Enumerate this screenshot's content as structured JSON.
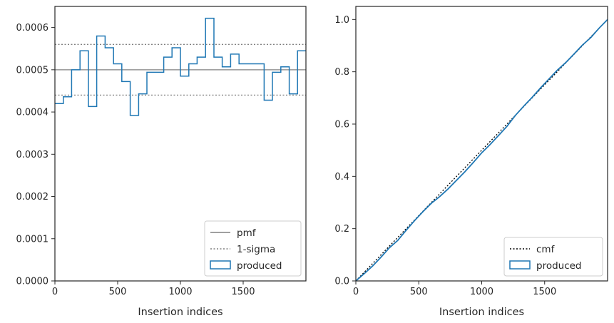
{
  "chart_data": [
    {
      "type": "step",
      "xlabel": "Insertion indices",
      "ylabel": "",
      "xlim": [
        0,
        2000
      ],
      "ylim": [
        0,
        0.00065
      ],
      "xticks": [
        0,
        500,
        1000,
        1500
      ],
      "xtick_labels": [
        "0",
        "500",
        "1000",
        "1500"
      ],
      "yticks": [
        0,
        0.0001,
        0.0002,
        0.0003,
        0.0004,
        0.0005,
        0.0006
      ],
      "ytick_labels": [
        "0.0000",
        "0.0001",
        "0.0002",
        "0.0003",
        "0.0004",
        "0.0005",
        "0.0006"
      ],
      "reference_lines": [
        {
          "name": "pmf",
          "y": 0.0005,
          "style": "solid",
          "color": "#808080"
        },
        {
          "name": "1-sigma",
          "y": 0.00056,
          "style": "dotted",
          "color": "#808080"
        },
        {
          "name": "1-sigma",
          "y": 0.00044,
          "style": "dotted",
          "color": "#808080"
        }
      ],
      "bin_edges": [
        0,
        67,
        133,
        200,
        267,
        333,
        400,
        467,
        533,
        600,
        667,
        733,
        800,
        867,
        933,
        1000,
        1067,
        1133,
        1200,
        1267,
        1333,
        1400,
        1467,
        1533,
        1600,
        1667,
        1733,
        1800,
        1867,
        1933,
        2000
      ],
      "series": [
        {
          "name": "produced",
          "color": "#1f77b4",
          "values": [
            0.00042,
            0.000436,
            0.0005,
            0.000545,
            0.000413,
            0.00058,
            0.000552,
            0.000514,
            0.000472,
            0.000392,
            0.000443,
            0.000494,
            0.000494,
            0.00053,
            0.000552,
            0.000485,
            0.000514,
            0.00053,
            0.000622,
            0.00053,
            0.000507,
            0.000537,
            0.000514,
            0.000514,
            0.000514,
            0.000428,
            0.000494,
            0.000507,
            0.000443,
            0.000545
          ]
        }
      ],
      "legend": {
        "placement": "lower-right",
        "entries": [
          "pmf",
          "1-sigma",
          "produced"
        ]
      }
    },
    {
      "type": "line",
      "xlabel": "Insertion indices",
      "ylabel": "",
      "xlim": [
        0,
        2000
      ],
      "ylim": [
        0,
        1.05
      ],
      "xticks": [
        0,
        500,
        1000,
        1500
      ],
      "xtick_labels": [
        "0",
        "500",
        "1000",
        "1500"
      ],
      "yticks": [
        0,
        0.2,
        0.4,
        0.6,
        0.8,
        1.0
      ],
      "ytick_labels": [
        "0.0",
        "0.2",
        "0.4",
        "0.6",
        "0.8",
        "1.0"
      ],
      "series": [
        {
          "name": "cmf",
          "style": "dotted",
          "color": "#000000",
          "x": [
            0,
            2000
          ],
          "y": [
            0,
            1.0
          ]
        },
        {
          "name": "produced",
          "style": "solid",
          "color": "#1f77b4",
          "x": [
            0,
            67,
            133,
            200,
            267,
            333,
            400,
            467,
            533,
            600,
            667,
            733,
            800,
            867,
            933,
            1000,
            1067,
            1133,
            1200,
            1267,
            1333,
            1400,
            1467,
            1533,
            1600,
            1667,
            1733,
            1800,
            1867,
            1933,
            2000
          ],
          "y": [
            0,
            0.028,
            0.057,
            0.091,
            0.127,
            0.155,
            0.194,
            0.231,
            0.265,
            0.297,
            0.323,
            0.352,
            0.385,
            0.418,
            0.453,
            0.49,
            0.522,
            0.556,
            0.591,
            0.633,
            0.668,
            0.702,
            0.738,
            0.772,
            0.806,
            0.835,
            0.868,
            0.902,
            0.931,
            0.967,
            1.0
          ]
        }
      ],
      "legend": {
        "placement": "lower-right",
        "entries": [
          "cmf",
          "produced"
        ]
      }
    }
  ]
}
